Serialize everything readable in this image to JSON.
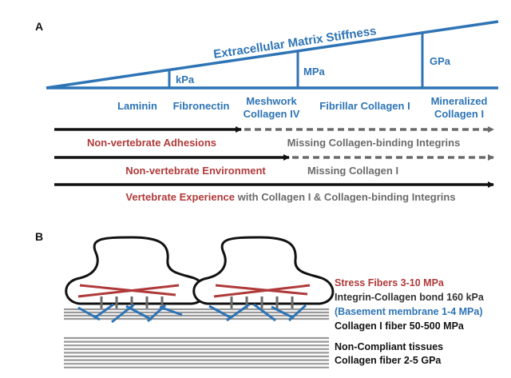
{
  "panel_a": {
    "label": "A",
    "stiffness_title": "Extracellular Matrix Stiffness",
    "scale_labels": {
      "kpa": "kPa",
      "mpa": "MPa",
      "gpa": "GPa"
    },
    "matrix_components": [
      "Laminin",
      "Fibronectin",
      "Meshwork",
      "Collagen IV",
      "Fibrillar Collagen I",
      "Mineralized",
      "Collagen I"
    ],
    "rows": [
      {
        "left": "Non-vertebrate Adhesions",
        "right": "Missing Collagen-binding Integrins"
      },
      {
        "left": "Non-vertebrate Environment",
        "right": "Missing Collagen I"
      },
      {
        "emph": "Vertebrate Experience",
        "rest": " with Collagen I & Collagen-binding Integrins"
      }
    ]
  },
  "panel_b": {
    "label": "B",
    "labels": {
      "stress": "Stress Fibers 3-10 MPa",
      "integrin": "Integrin-Collagen bond 160 kPa",
      "basement": "(Basement membrane 1-4 MPa)",
      "collagen_fiber": "Collagen I fiber 50-500 MPa",
      "noncompliant": "Non-Compliant tissues",
      "collagen_gpa": "Collagen fiber 2-5 GPa"
    }
  },
  "colors": {
    "blue": "#2e74b5",
    "red": "#b03a3a",
    "gray": "#6b6b6b",
    "black": "#111111"
  }
}
